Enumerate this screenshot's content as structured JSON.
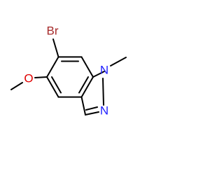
{
  "atoms": [
    {
      "label": "Br"
    },
    {
      "label": "O"
    },
    {
      "label": "N"
    },
    {
      "label": "N"
    }
  ]
}
